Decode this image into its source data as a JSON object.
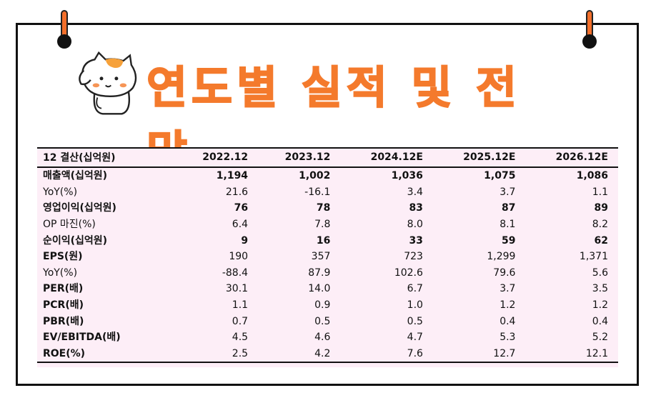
{
  "title": "연도별 실적 및 전망",
  "table": {
    "columns": [
      "12 결산(십억원)",
      "2022.12",
      "2023.12",
      "2024.12E",
      "2025.12E",
      "2026.12E"
    ],
    "rows": [
      {
        "label": "매출액(십억원)",
        "values": [
          "1,194",
          "1,002",
          "1,036",
          "1,075",
          "1,086"
        ],
        "bold": true
      },
      {
        "label": "YoY(%)",
        "values": [
          "21.6",
          "-16.1",
          "3.4",
          "3.7",
          "1.1"
        ],
        "bold": false
      },
      {
        "label": "영업이익(십억원)",
        "values": [
          "76",
          "78",
          "83",
          "87",
          "89"
        ],
        "bold": true
      },
      {
        "label": "OP 마진(%)",
        "values": [
          "6.4",
          "7.8",
          "8.0",
          "8.1",
          "8.2"
        ],
        "bold": false
      },
      {
        "label": "순이익(십억원)",
        "values": [
          "9",
          "16",
          "33",
          "59",
          "62"
        ],
        "bold": true
      },
      {
        "label": "EPS(원)",
        "values": [
          "190",
          "357",
          "723",
          "1,299",
          "1,371"
        ],
        "bold": false,
        "label_bold": true
      },
      {
        "label": "YoY(%)",
        "values": [
          "-88.4",
          "87.9",
          "102.6",
          "79.6",
          "5.6"
        ],
        "bold": false
      },
      {
        "label": "PER(배)",
        "values": [
          "30.1",
          "14.0",
          "6.7",
          "3.7",
          "3.5"
        ],
        "bold": false,
        "label_bold": true
      },
      {
        "label": "PCR(배)",
        "values": [
          "1.1",
          "0.9",
          "1.0",
          "1.2",
          "1.2"
        ],
        "bold": false,
        "label_bold": true
      },
      {
        "label": "PBR(배)",
        "values": [
          "0.7",
          "0.5",
          "0.5",
          "0.4",
          "0.4"
        ],
        "bold": false,
        "label_bold": true
      },
      {
        "label": "EV/EBITDA(배)",
        "values": [
          "4.5",
          "4.6",
          "4.7",
          "5.3",
          "5.2"
        ],
        "bold": false,
        "label_bold": true
      },
      {
        "label": "ROE(%)",
        "values": [
          "2.5",
          "4.2",
          "7.6",
          "12.7",
          "12.1"
        ],
        "bold": false,
        "label_bold": true
      }
    ]
  },
  "colors": {
    "accent": "#f47a2c",
    "table_bg": "#fdeef7",
    "border": "#111111"
  },
  "icons": [
    "cat-mascot-icon",
    "pushpin-icon"
  ]
}
